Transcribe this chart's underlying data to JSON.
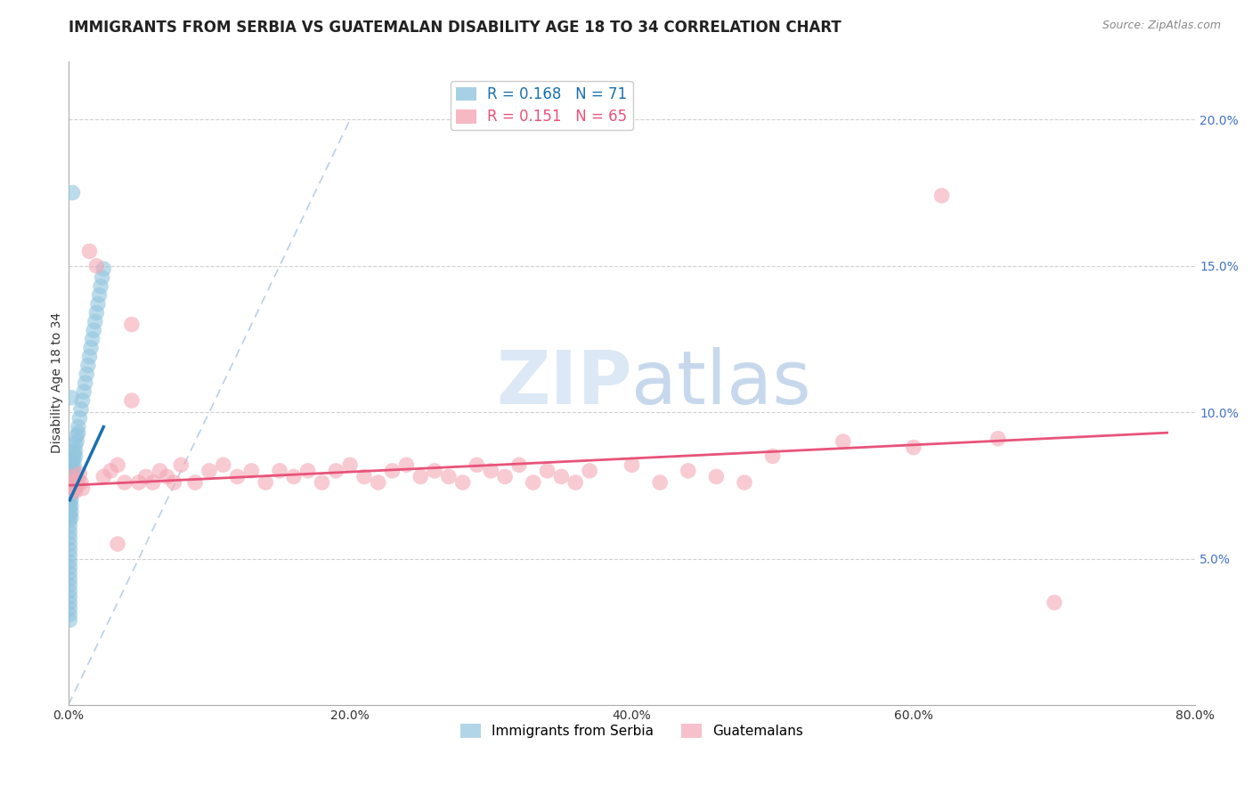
{
  "title": "IMMIGRANTS FROM SERBIA VS GUATEMALAN DISABILITY AGE 18 TO 34 CORRELATION CHART",
  "source_text": "Source: ZipAtlas.com",
  "ylabel": "Disability Age 18 to 34",
  "legend_entries": [
    "Immigrants from Serbia",
    "Guatemalans"
  ],
  "r_serbia": 0.168,
  "n_serbia": 71,
  "r_guatemalan": 0.151,
  "n_guatemalan": 65,
  "color_serbia": "#92c5de",
  "color_guatemalan": "#f4a7b5",
  "color_serbia_line": "#1a6faf",
  "color_guatemalan_line": "#e8537a",
  "xlim": [
    0.0,
    0.8
  ],
  "ylim": [
    0.0,
    0.22
  ],
  "x_ticks": [
    0.0,
    0.2,
    0.4,
    0.6,
    0.8
  ],
  "x_tick_labels": [
    "0.0%",
    "20.0%",
    "40.0%",
    "60.0%",
    "80.0%"
  ],
  "y_ticks": [
    0.05,
    0.1,
    0.15,
    0.2
  ],
  "y_tick_labels": [
    "5.0%",
    "10.0%",
    "15.0%",
    "20.0%"
  ],
  "tick_color_y": "#4472c4",
  "tick_color_x": "#333333",
  "background_color": "#ffffff",
  "grid_color": "#cccccc",
  "title_fontsize": 12,
  "axis_label_fontsize": 10,
  "tick_fontsize": 10,
  "legend_fontsize": 11,
  "watermark_color": "#dce8f5",
  "watermark_fontsize": 60,
  "serbia_x": [
    0.001,
    0.001,
    0.001,
    0.001,
    0.001,
    0.001,
    0.001,
    0.001,
    0.001,
    0.001,
    0.001,
    0.001,
    0.001,
    0.001,
    0.001,
    0.001,
    0.001,
    0.001,
    0.001,
    0.001,
    0.001,
    0.001,
    0.001,
    0.001,
    0.001,
    0.002,
    0.002,
    0.002,
    0.002,
    0.002,
    0.002,
    0.002,
    0.002,
    0.002,
    0.003,
    0.003,
    0.003,
    0.003,
    0.003,
    0.003,
    0.004,
    0.004,
    0.004,
    0.004,
    0.005,
    0.005,
    0.005,
    0.006,
    0.006,
    0.007,
    0.007,
    0.008,
    0.009,
    0.01,
    0.011,
    0.012,
    0.013,
    0.014,
    0.015,
    0.016,
    0.017,
    0.018,
    0.019,
    0.02,
    0.021,
    0.022,
    0.023,
    0.024,
    0.025,
    0.003,
    0.002
  ],
  "serbia_y": [
    0.077,
    0.075,
    0.073,
    0.071,
    0.069,
    0.067,
    0.065,
    0.063,
    0.061,
    0.059,
    0.057,
    0.055,
    0.053,
    0.051,
    0.049,
    0.047,
    0.045,
    0.043,
    0.041,
    0.039,
    0.037,
    0.035,
    0.033,
    0.031,
    0.029,
    0.08,
    0.078,
    0.076,
    0.074,
    0.072,
    0.07,
    0.068,
    0.066,
    0.064,
    0.083,
    0.081,
    0.079,
    0.077,
    0.075,
    0.073,
    0.086,
    0.084,
    0.082,
    0.08,
    0.089,
    0.087,
    0.085,
    0.092,
    0.09,
    0.095,
    0.093,
    0.098,
    0.101,
    0.104,
    0.107,
    0.11,
    0.113,
    0.116,
    0.119,
    0.122,
    0.125,
    0.128,
    0.131,
    0.134,
    0.137,
    0.14,
    0.143,
    0.146,
    0.149,
    0.175,
    0.105
  ],
  "guatemalan_x": [
    0.002,
    0.003,
    0.004,
    0.005,
    0.006,
    0.007,
    0.008,
    0.009,
    0.01,
    0.015,
    0.02,
    0.025,
    0.03,
    0.035,
    0.04,
    0.045,
    0.05,
    0.055,
    0.06,
    0.065,
    0.07,
    0.075,
    0.08,
    0.09,
    0.1,
    0.11,
    0.12,
    0.13,
    0.14,
    0.15,
    0.16,
    0.17,
    0.18,
    0.19,
    0.2,
    0.21,
    0.22,
    0.23,
    0.24,
    0.25,
    0.26,
    0.27,
    0.28,
    0.29,
    0.3,
    0.31,
    0.32,
    0.33,
    0.34,
    0.35,
    0.36,
    0.37,
    0.4,
    0.42,
    0.44,
    0.46,
    0.48,
    0.5,
    0.55,
    0.6,
    0.62,
    0.66,
    0.7,
    0.035,
    0.045
  ],
  "guatemalan_y": [
    0.078,
    0.076,
    0.074,
    0.073,
    0.075,
    0.077,
    0.079,
    0.076,
    0.074,
    0.155,
    0.15,
    0.078,
    0.08,
    0.082,
    0.076,
    0.13,
    0.076,
    0.078,
    0.076,
    0.08,
    0.078,
    0.076,
    0.082,
    0.076,
    0.08,
    0.082,
    0.078,
    0.08,
    0.076,
    0.08,
    0.078,
    0.08,
    0.076,
    0.08,
    0.082,
    0.078,
    0.076,
    0.08,
    0.082,
    0.078,
    0.08,
    0.078,
    0.076,
    0.082,
    0.08,
    0.078,
    0.082,
    0.076,
    0.08,
    0.078,
    0.076,
    0.08,
    0.082,
    0.076,
    0.08,
    0.078,
    0.076,
    0.085,
    0.09,
    0.088,
    0.174,
    0.091,
    0.035,
    0.055,
    0.104
  ],
  "diag_line_x": [
    0.0,
    0.2
  ],
  "diag_line_y": [
    0.0,
    0.2
  ],
  "serbia_line_x": [
    0.001,
    0.025
  ],
  "serbia_line_y": [
    0.07,
    0.095
  ],
  "guatemalan_line_x": [
    0.0,
    0.78
  ],
  "guatemalan_line_y": [
    0.075,
    0.093
  ]
}
